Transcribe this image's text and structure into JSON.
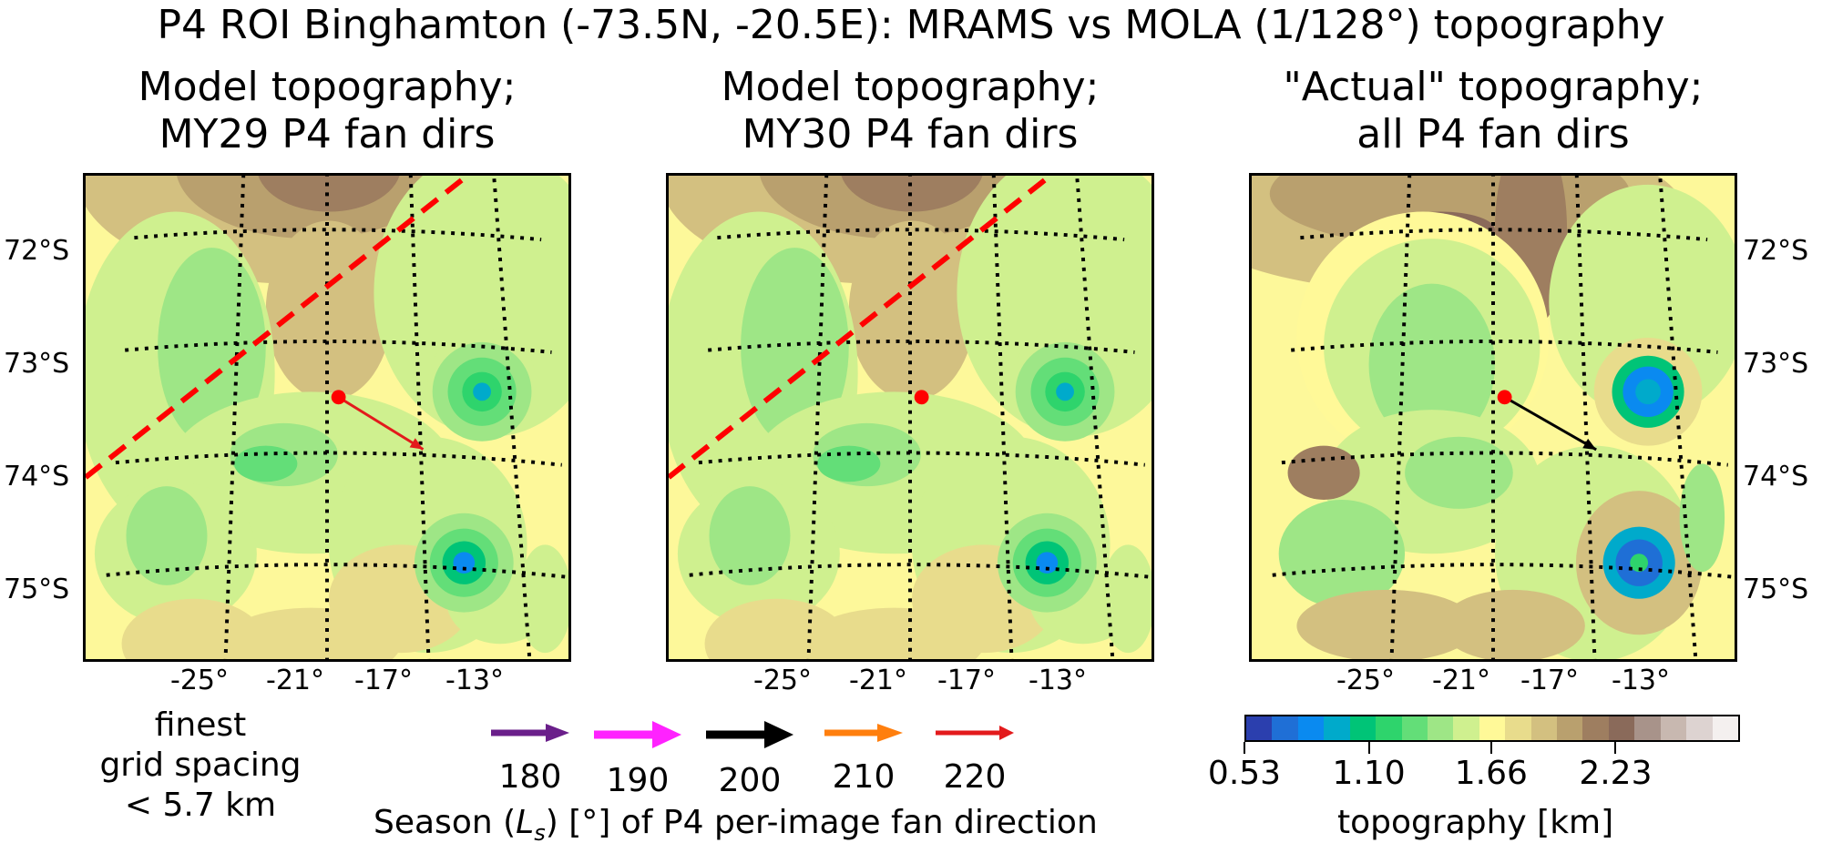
{
  "chart_data": {
    "type": "heatmap",
    "title": "P4 ROI Binghamton (-73.5N, -20.5E): MRAMS vs MOLA (1/128°) topography",
    "panels": [
      {
        "id": "p1",
        "title_line1": "Model topography;",
        "title_line2": "MY29 P4 fan dirs",
        "terrain": "model",
        "show_dashed_line": true,
        "arrows": [
          {
            "ls": 220,
            "color": "#e31a1c",
            "from": {
              "lat": -73.5,
              "lon": -20.5
            },
            "to": {
              "lat": -73.95,
              "lon": -16.9
            }
          }
        ]
      },
      {
        "id": "p2",
        "title_line1": "Model topography;",
        "title_line2": "MY30 P4 fan dirs",
        "terrain": "model",
        "show_dashed_line": true,
        "arrows": []
      },
      {
        "id": "p3",
        "title_line1": "\"Actual\" topography;",
        "title_line2": "all P4 fan dirs",
        "terrain": "actual",
        "show_dashed_line": false,
        "arrows": [
          {
            "ls": 200,
            "color": "#000000",
            "from": {
              "lat": -73.5,
              "lon": -20.5
            },
            "to": {
              "lat": -73.95,
              "lon": -16.6
            }
          }
        ]
      }
    ],
    "roi_point": {
      "lat": -73.5,
      "lon": -20.5,
      "color": "#ff0000"
    },
    "lat_ticks": [
      "72°S",
      "73°S",
      "74°S",
      "75°S"
    ],
    "lon_ticks": [
      "-25°",
      "-21°",
      "-17°",
      "-13°"
    ],
    "lat_values": [
      -72,
      -73,
      -74,
      -75
    ],
    "lon_values": [
      -25,
      -21,
      -17,
      -13
    ],
    "grid": "dotted",
    "note": [
      "finest",
      "grid spacing",
      "< 5.7 km"
    ],
    "arrow_legend": {
      "title_pre": "Season (",
      "title_sym": "L",
      "title_sub": "s",
      "title_post": ") [°] of P4 per-image fan direction",
      "items": [
        {
          "ls": "180",
          "color": "#6a1f8a"
        },
        {
          "ls": "190",
          "color": "#ff22ff"
        },
        {
          "ls": "200",
          "color": "#000000"
        },
        {
          "ls": "210",
          "color": "#ff7f0e"
        },
        {
          "ls": "220",
          "color": "#e31a1c"
        }
      ]
    },
    "colorbar": {
      "label": "topography [km]",
      "range": [
        0.53,
        2.8
      ],
      "ticks": [
        0.53,
        1.1,
        1.66,
        2.23
      ],
      "tick_labels": [
        "0.53",
        "1.10",
        "1.66",
        "2.23"
      ],
      "colors": [
        "#2b3fae",
        "#1f6fd6",
        "#0a8af0",
        "#00aacb",
        "#00c477",
        "#2ed46c",
        "#63de78",
        "#9ee686",
        "#cff08f",
        "#fff998",
        "#e8dc8c",
        "#d3c080",
        "#b9a06e",
        "#9e7e60",
        "#8a6a5a",
        "#a8938a",
        "#c8b8b0",
        "#ddd3d1",
        "#f4f0ef"
      ]
    },
    "dashed_line_color": "#ff0000"
  }
}
